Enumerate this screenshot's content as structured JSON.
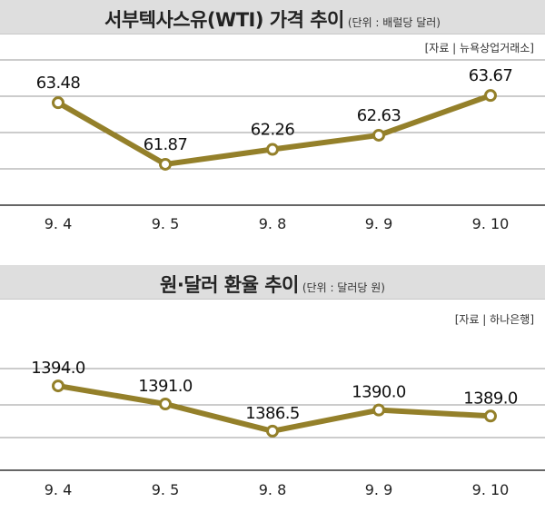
{
  "chart_data": [
    {
      "type": "line",
      "title": "서부텍사스유(WTI) 가격 추이",
      "unit_note": "(단위 : 배럴당 달러)",
      "source": "[자료 | 뉴욕상업거래소]",
      "categories": [
        "9. 4",
        "9. 5",
        "9. 8",
        "9. 9",
        "9. 10"
      ],
      "values": [
        63.48,
        61.87,
        62.26,
        62.63,
        63.67
      ],
      "data_labels": [
        "63.48",
        "61.87",
        "62.26",
        "62.63",
        "63.67"
      ],
      "ylim": [
        60.8,
        64.6
      ],
      "grid": true,
      "line_color": "#94802a",
      "marker_fill": "#ffffff"
    },
    {
      "type": "line",
      "title": "원·달러 환율 추이",
      "unit_note": "(단위 : 달러당 원)",
      "source": "[자료 | 하나은행]",
      "categories": [
        "9. 4",
        "9. 5",
        "9. 8",
        "9. 9",
        "9. 10"
      ],
      "values": [
        1394.0,
        1391.0,
        1386.5,
        1390.0,
        1389.0
      ],
      "data_labels": [
        "1394.0",
        "1391.0",
        "1386.5",
        "1390.0",
        "1389.0"
      ],
      "ylim": [
        1380,
        1402
      ],
      "grid": true,
      "line_color": "#94802a",
      "marker_fill": "#ffffff"
    }
  ]
}
